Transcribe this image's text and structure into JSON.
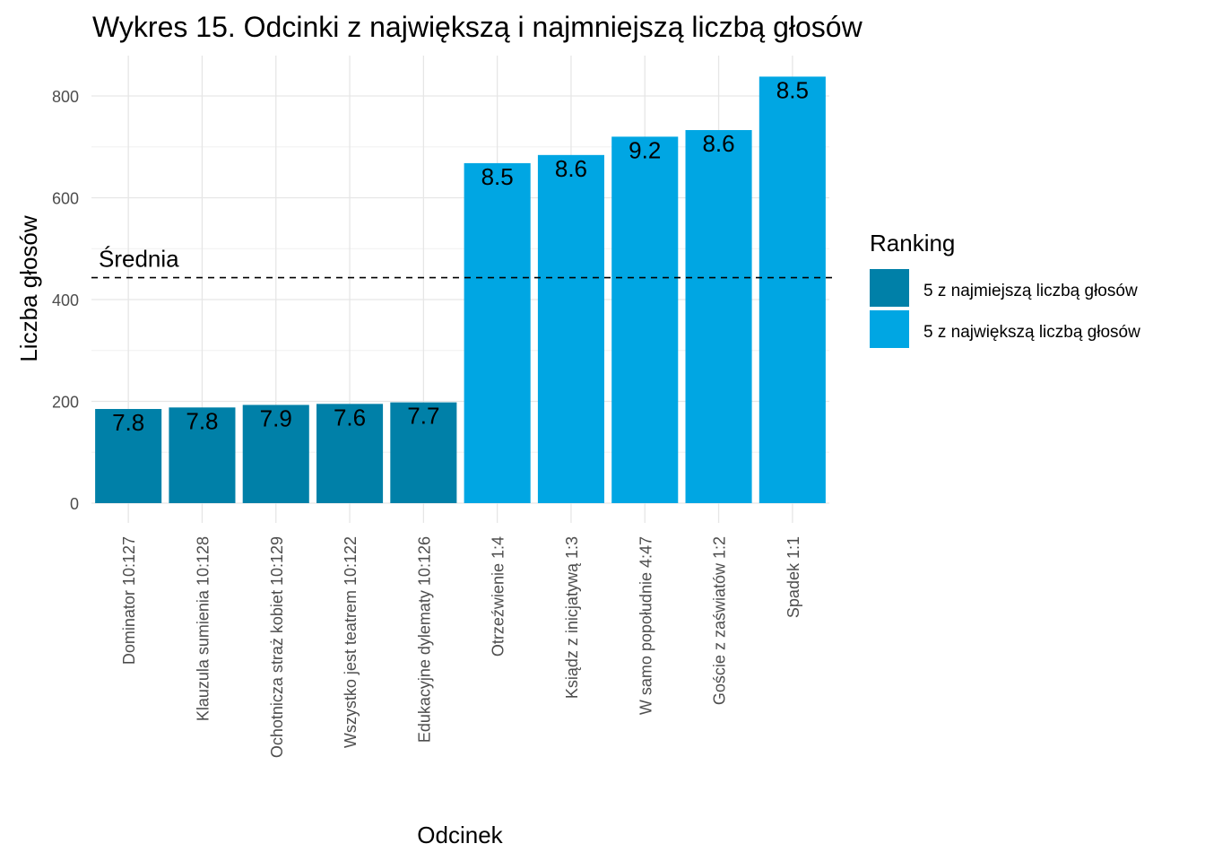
{
  "chart_data": {
    "type": "bar",
    "title": "Wykres 15. Odcinki z największą i najmniejszą liczbą głosów",
    "xlabel": "Odcinek",
    "ylabel": "Liczba głosów",
    "ylim": [
      0,
      880
    ],
    "yticks": [
      0,
      200,
      400,
      600,
      800
    ],
    "grid": true,
    "categories": [
      "Dominator 10:127",
      "Klauzula sumienia 10:128",
      "Ochotnicza straż kobiet 10:129",
      "Wszystko jest teatrem 10:122",
      "Edukacyjne dylematy 10:126",
      "Otrzeźwienie 1:4",
      "Ksiądz z inicjatywą 1:3",
      "W samo popołudnie 4:47",
      "Goście z zaświatów 1:2",
      "Spadek 1:1"
    ],
    "values": [
      185,
      188,
      193,
      195,
      198,
      668,
      684,
      720,
      733,
      838
    ],
    "ratings": [
      "7.8",
      "7.8",
      "7.9",
      "7.6",
      "7.7",
      "8.5",
      "8.6",
      "9.2",
      "8.6",
      "8.5"
    ],
    "groups": [
      0,
      0,
      0,
      0,
      0,
      1,
      1,
      1,
      1,
      1
    ],
    "mean_line": {
      "value": 443,
      "label": "Średnia"
    },
    "legend": {
      "title": "Ranking",
      "position": "right",
      "items": [
        {
          "label": "5 z najmiejszą liczbą głosów",
          "color": "#0080a8"
        },
        {
          "label": "5 z największą liczbą głosów",
          "color": "#00a6e3"
        }
      ]
    }
  }
}
